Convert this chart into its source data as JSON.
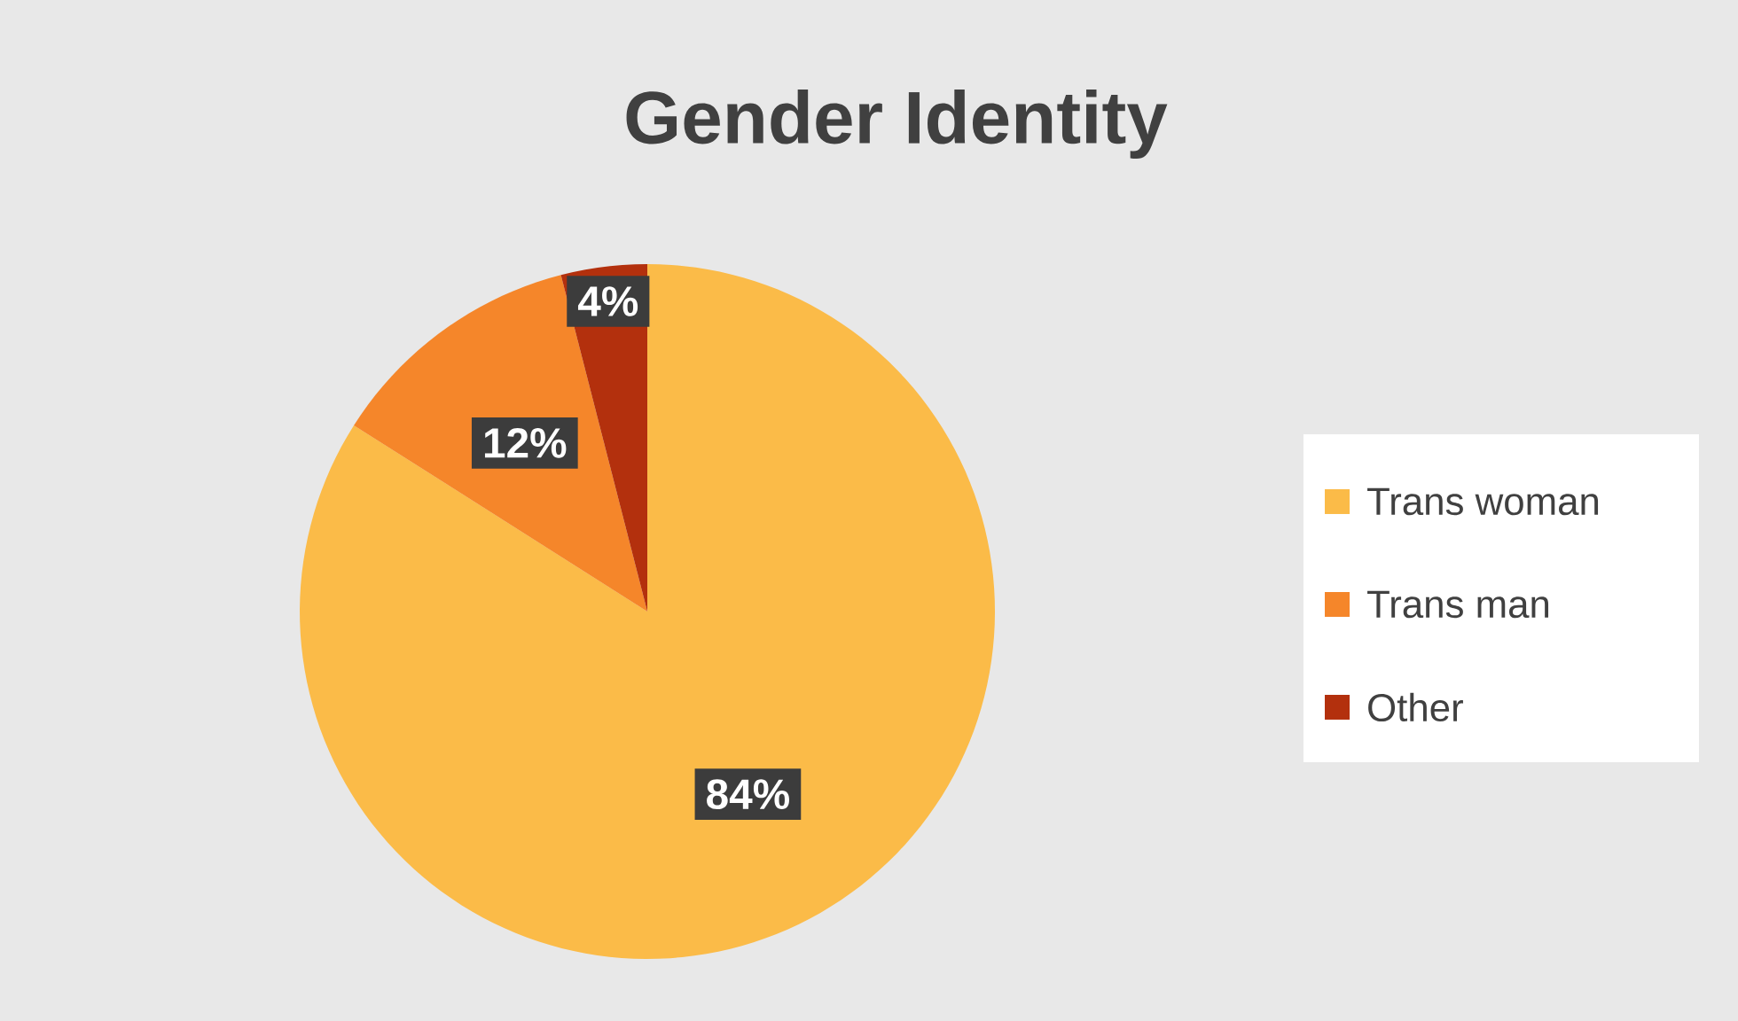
{
  "chart_data": {
    "type": "pie",
    "title": "Gender Identity",
    "categories": [
      "Trans woman",
      "Trans man",
      "Other"
    ],
    "values": [
      84,
      12,
      4
    ],
    "colors": [
      "#fbbb48",
      "#f5862a",
      "#b3300d"
    ],
    "value_labels": [
      "84%",
      "12%",
      "4%"
    ],
    "legend": "right"
  }
}
